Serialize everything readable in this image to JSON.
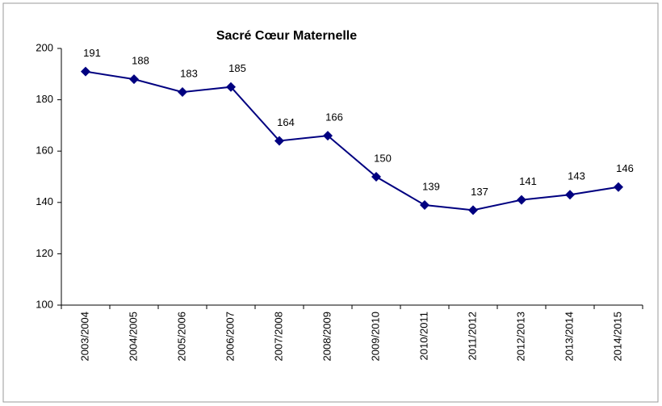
{
  "chart_data": {
    "type": "line",
    "title": "Sacré Cœur Maternelle",
    "categories": [
      "2003/2004",
      "2004/2005",
      "2005/2006",
      "2006/2007",
      "2007/2008",
      "2008/2009",
      "2009/2010",
      "2010/2011",
      "2011/2012",
      "2012/2013",
      "2013/2014",
      "2014/2015"
    ],
    "series": [
      {
        "name": "Sacré Cœur Maternelle",
        "color": "#000080",
        "values": [
          191,
          188,
          183,
          185,
          164,
          166,
          150,
          139,
          137,
          141,
          143,
          146
        ]
      }
    ],
    "ylim": [
      100,
      200
    ],
    "yticks": [
      100,
      120,
      140,
      160,
      180,
      200
    ],
    "grid": false
  }
}
